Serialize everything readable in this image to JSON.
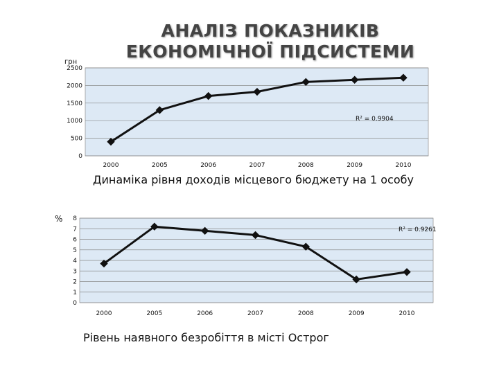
{
  "page": {
    "title": "АНАЛІЗ ПОКАЗНИКІВ ЕКОНОМІЧНОЇ ПІДСИСТЕМИ"
  },
  "chart_data": [
    {
      "type": "line",
      "caption": "Динаміка рівня доходів місцевого бюджету на 1 особу",
      "unit": "грн",
      "categories": [
        "2000",
        "2005",
        "2006",
        "2007",
        "2008",
        "2009",
        "2010"
      ],
      "values": [
        400,
        1300,
        1700,
        1820,
        2100,
        2160,
        2220
      ],
      "ylim": [
        0,
        2500
      ],
      "yticks": [
        "0",
        "500",
        "1000",
        "1500",
        "2000",
        "2500"
      ],
      "r2_label": "R² = 0.9904",
      "grid": true,
      "plot_color": "#dde9f5",
      "line_color": "#111111"
    },
    {
      "type": "line",
      "caption": "Рівень наявного безробіття в місті Острог",
      "unit": "%",
      "categories": [
        "2000",
        "2005",
        "2006",
        "2007",
        "2008",
        "2009",
        "2010"
      ],
      "values": [
        3.7,
        7.2,
        6.8,
        6.4,
        5.3,
        2.2,
        2.9
      ],
      "ylim": [
        0,
        8
      ],
      "yticks": [
        "0",
        "1",
        "2",
        "3",
        "4",
        "5",
        "6",
        "7",
        "8"
      ],
      "r2_label": "R² = 0.9261",
      "grid": true,
      "plot_color": "#dde9f5",
      "line_color": "#111111"
    }
  ]
}
